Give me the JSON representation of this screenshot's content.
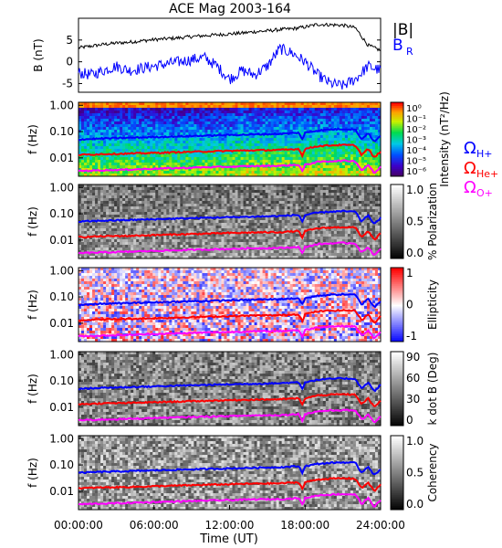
{
  "figure_title": "ACE Mag 2003-164",
  "xlabel": "Time (UT)",
  "x_ticks": [
    "00:00:00",
    "06:00:00",
    "12:00:00",
    "18:00:00",
    "24:00:00"
  ],
  "colors": {
    "h_plus": "#0000ff",
    "he_plus": "#ff0000",
    "o_plus": "#ff00ff",
    "b_total": "#000000",
    "b_r": "#0000ff"
  },
  "gyro_legend": {
    "h": "Ω",
    "h_sub": "H+",
    "he": "Ω",
    "he_sub": "He+",
    "o": "Ω",
    "o_sub": "O+"
  },
  "field_legend": {
    "b_total": "|B|",
    "b_r": "B",
    "b_r_sub": "R"
  },
  "chart_data": [
    {
      "type": "line",
      "panel": "magnetic-field",
      "ylabel": "B (nT)",
      "y_ticks": [
        "5",
        "0",
        "-5"
      ],
      "ylim": [
        -7,
        10
      ],
      "xlim_hours": [
        0,
        24
      ],
      "series": [
        {
          "name": "|B|",
          "x": [
            0,
            1,
            2,
            3,
            4,
            5,
            6,
            7,
            8,
            9,
            10,
            11,
            12,
            13,
            14,
            15,
            16,
            17,
            18,
            19,
            20,
            21,
            22,
            23,
            24
          ],
          "values": [
            3.2,
            3.6,
            4.0,
            4.3,
            4.5,
            4.8,
            5.1,
            5.3,
            5.5,
            5.8,
            6.0,
            6.2,
            6.4,
            6.6,
            6.9,
            7.1,
            7.4,
            7.6,
            8.0,
            8.6,
            8.5,
            8.4,
            7.8,
            3.8,
            2.6
          ]
        },
        {
          "name": "B_R",
          "x": [
            0,
            1,
            2,
            3,
            4,
            5,
            6,
            7,
            8,
            9,
            10,
            11,
            12,
            13,
            14,
            15,
            16,
            17,
            18,
            19,
            20,
            21,
            22,
            23,
            24
          ],
          "values": [
            -2.5,
            -3,
            -2,
            -1,
            -2,
            -1.5,
            -1,
            -0.5,
            0,
            0.5,
            1,
            -1,
            -4,
            -2,
            -3,
            -1,
            3,
            2,
            0,
            -3,
            -5,
            -5.5,
            -4,
            -1,
            -2
          ]
        }
      ]
    },
    {
      "type": "heatmap",
      "panel": "power-spectrum",
      "ylabel": "f (Hz)",
      "y_ticks": [
        "1.00",
        "0.10",
        "0.01"
      ],
      "colorbar_label": "Intensity (nT²/Hz)",
      "colorbar_ticks": [
        "10⁰",
        "10⁻¹",
        "10⁻²",
        "10⁻³",
        "10⁻⁴",
        "10⁻⁵",
        "10⁻⁶"
      ]
    },
    {
      "type": "heatmap",
      "panel": "polarization",
      "ylabel": "f (Hz)",
      "y_ticks": [
        "1.00",
        "0.10",
        "0.01"
      ],
      "colorbar_label": "% Polarization",
      "colorbar_ticks": [
        "1.0",
        "0.5",
        "0.0"
      ]
    },
    {
      "type": "heatmap",
      "panel": "ellipticity",
      "ylabel": "f (Hz)",
      "y_ticks": [
        "1.00",
        "0.10",
        "0.01"
      ],
      "colorbar_label": "Ellipticity",
      "colorbar_ticks": [
        "1",
        "0",
        "-1"
      ]
    },
    {
      "type": "heatmap",
      "panel": "wave-normal-angle",
      "ylabel": "f (Hz)",
      "y_ticks": [
        "1.00",
        "0.10",
        "0.01"
      ],
      "colorbar_label": "k dot B (Deg)",
      "colorbar_ticks": [
        "90",
        "60",
        "30",
        "0"
      ]
    },
    {
      "type": "heatmap",
      "panel": "coherency",
      "ylabel": "f (Hz)",
      "y_ticks": [
        "1.00",
        "0.10",
        "0.01"
      ],
      "colorbar_label": "Coherency",
      "colorbar_ticks": [
        "1.0",
        "0.5",
        "0.0"
      ]
    },
    {
      "type": "line",
      "panel": "gyrofrequency-overlay",
      "note_units": "Hz vs hours UT",
      "series": [
        {
          "name": "Ω H+",
          "x": [
            0,
            2,
            4,
            6,
            8,
            10,
            12,
            14,
            16,
            17.5,
            17.8,
            18,
            19,
            20,
            21,
            22,
            22.5,
            23,
            23.5,
            24
          ],
          "values": [
            0.05,
            0.055,
            0.058,
            0.062,
            0.066,
            0.07,
            0.074,
            0.078,
            0.082,
            0.09,
            0.05,
            0.09,
            0.11,
            0.12,
            0.125,
            0.12,
            0.05,
            0.09,
            0.04,
            0.07
          ]
        },
        {
          "name": "Ω He+",
          "x": [
            0,
            2,
            4,
            6,
            8,
            10,
            12,
            14,
            16,
            17.5,
            17.8,
            18,
            19,
            20,
            21,
            22,
            22.5,
            23,
            23.5,
            24
          ],
          "values": [
            0.013,
            0.014,
            0.0145,
            0.0155,
            0.0165,
            0.0175,
            0.0185,
            0.0195,
            0.02,
            0.022,
            0.012,
            0.022,
            0.028,
            0.03,
            0.031,
            0.03,
            0.013,
            0.022,
            0.01,
            0.018
          ]
        },
        {
          "name": "Ω O+",
          "x": [
            0,
            2,
            4,
            6,
            8,
            10,
            12,
            14,
            16,
            17.5,
            17.8,
            18,
            19,
            20,
            21,
            22,
            22.5,
            23,
            23.5,
            24
          ],
          "values": [
            0.0032,
            0.0034,
            0.0036,
            0.0039,
            0.0041,
            0.0044,
            0.0046,
            0.0049,
            0.005,
            0.0055,
            0.003,
            0.0055,
            0.007,
            0.0075,
            0.0078,
            0.0075,
            0.0033,
            0.0055,
            0.0026,
            0.0045
          ]
        }
      ]
    }
  ]
}
